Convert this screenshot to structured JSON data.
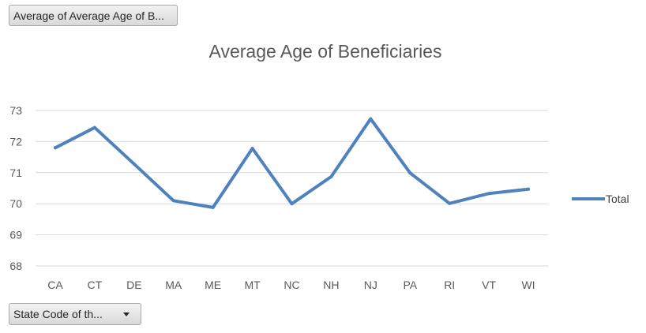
{
  "value_field_button": "Average of Average Age of B...",
  "axis_field_button": "State Code of th...",
  "chart_data": {
    "type": "line",
    "title": "Average Age of Beneficiaries",
    "categories": [
      "CA",
      "CT",
      "DE",
      "MA",
      "ME",
      "MT",
      "NC",
      "NH",
      "NJ",
      "PA",
      "RI",
      "VT",
      "WI"
    ],
    "series": [
      {
        "name": "Total",
        "color": "#4f81bd",
        "values": [
          71.8,
          72.45,
          71.28,
          70.1,
          69.88,
          71.78,
          70.0,
          70.87,
          72.73,
          70.99,
          70.01,
          70.33,
          70.47
        ]
      }
    ],
    "ylim": [
      68,
      73
    ],
    "yticks": [
      68,
      69,
      70,
      71,
      72,
      73
    ],
    "grid": true,
    "legend": "right"
  }
}
